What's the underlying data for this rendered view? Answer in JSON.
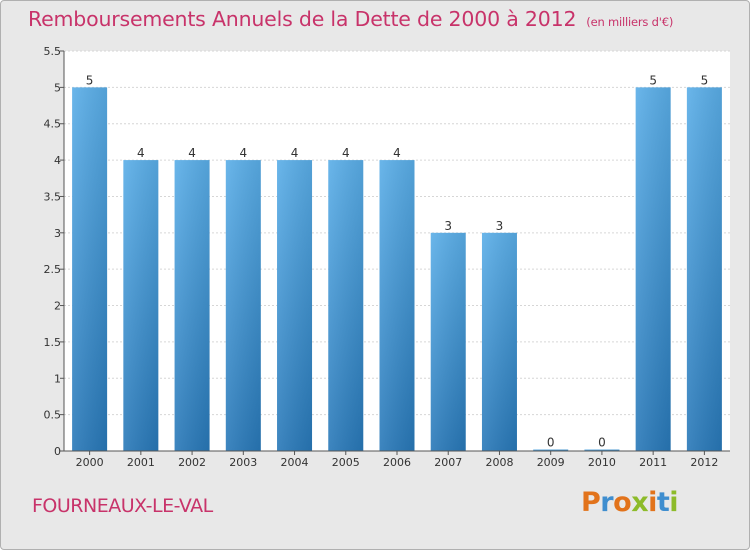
{
  "page": {
    "title": "Remboursements Annuels de la Dette de 2000 à 2012",
    "subtitle": "(en milliers d'€)",
    "commune": "FOURNEAUX-LE-VAL",
    "logo": {
      "text": "Proxiti",
      "colors": [
        "#e2731b",
        "#3f8ecf",
        "#e2731b",
        "#8dbb2a",
        "#e2731b",
        "#3f8ecf",
        "#8dbb2a"
      ]
    }
  },
  "colors": {
    "title": "#c8336a",
    "bar_top": "#5aaee8",
    "bar_bottom": "#2878b8",
    "background": "#e8e8e8"
  },
  "chart_data": {
    "type": "bar",
    "categories": [
      "2000",
      "2001",
      "2002",
      "2003",
      "2004",
      "2005",
      "2006",
      "2007",
      "2008",
      "2009",
      "2010",
      "2011",
      "2012"
    ],
    "values": [
      5,
      4,
      4,
      4,
      4,
      4,
      4,
      3,
      3,
      0,
      0,
      5,
      5
    ],
    "value_labels": [
      "5",
      "4",
      "4",
      "4",
      "4",
      "4",
      "4",
      "3",
      "3",
      "0",
      "0",
      "5",
      "5"
    ],
    "title": "Remboursements Annuels de la Dette de 2000 à 2012",
    "ylabel": "",
    "xlabel": "",
    "ylim": [
      0,
      5.5
    ],
    "yticks": [
      "0",
      "0.5",
      "1",
      "1.5",
      "2",
      "2.5",
      "3",
      "3.5",
      "4",
      "4.5",
      "5",
      "5.5"
    ],
    "grid": true
  }
}
